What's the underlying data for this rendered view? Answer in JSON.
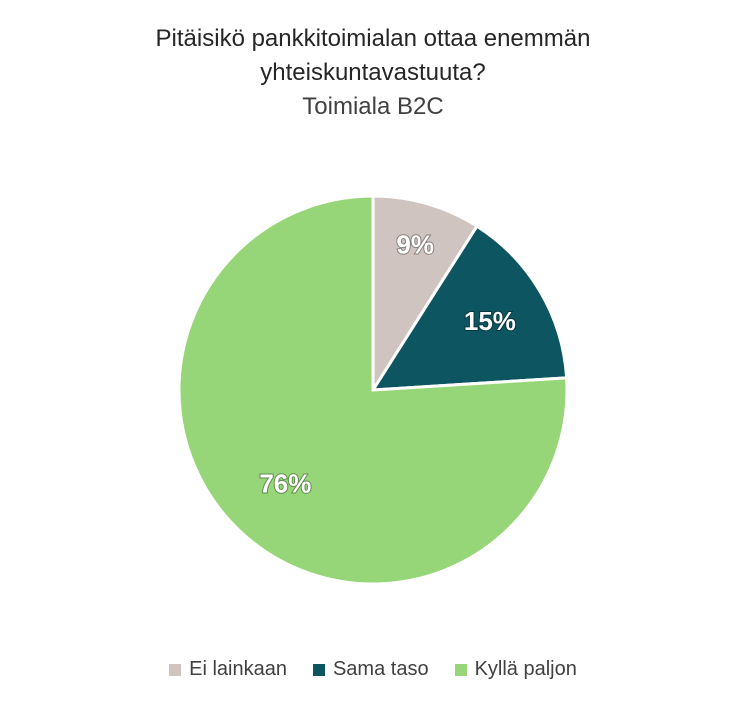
{
  "chart_data": {
    "type": "pie",
    "title": "Pitäisikö pankkitoimialan ottaa enemmän yhteiskuntavastuuta?",
    "title_lines": [
      "Pitäisikö pankkitoimialan ottaa enemmän",
      "yhteiskuntavastuuta?"
    ],
    "subtitle": "Toimiala B2C",
    "categories": [
      "Ei lainkaan",
      "Sama taso",
      "Kyllä paljon"
    ],
    "values": [
      9,
      15,
      76
    ],
    "data_labels": [
      "9%",
      "15%",
      "76%"
    ],
    "colors": [
      "#d0c4c1",
      "#0d5560",
      "#97d678"
    ],
    "legend_position": "bottom"
  }
}
